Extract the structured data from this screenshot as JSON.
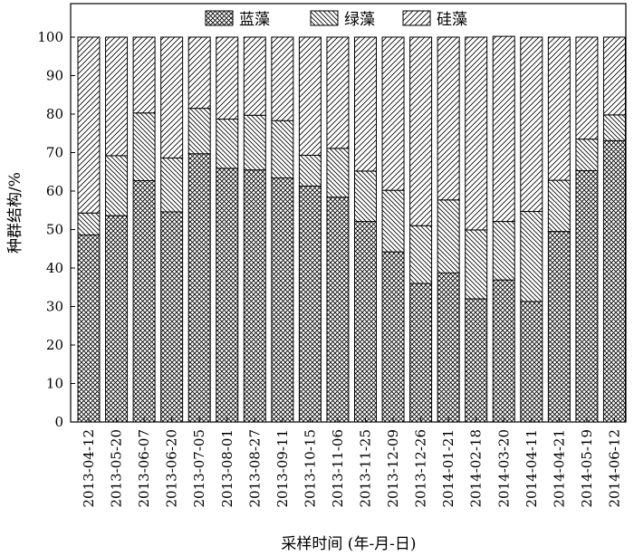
{
  "chart_data": {
    "type": "bar",
    "stacked": true,
    "xlabel": "采样时间 (年-月-日)",
    "ylabel": "种群结构/%",
    "ylim": [
      0,
      100
    ],
    "yticks": [
      0,
      10,
      20,
      30,
      40,
      50,
      60,
      70,
      80,
      90,
      100
    ],
    "legend_position": "top-center",
    "categories": [
      "2013-04-12",
      "2013-05-20",
      "2013-06-07",
      "2013-06-20",
      "2013-07-05",
      "2013-08-01",
      "2013-08-27",
      "2013-09-11",
      "2013-10-15",
      "2013-11-06",
      "2013-11-25",
      "2013-12-09",
      "2013-12-26",
      "2014-01-21",
      "2014-02-18",
      "2014-03-20",
      "2014-04-11",
      "2014-04-21",
      "2014-05-19",
      "2014-06-12"
    ],
    "series": [
      {
        "name": "蓝藻",
        "pattern": "crosshatch",
        "values": [
          48.6,
          53.6,
          62.7,
          54.6,
          69.7,
          65.9,
          65.5,
          63.4,
          61.3,
          58.4,
          52.1,
          44.2,
          36.0,
          38.7,
          32.0,
          36.9,
          31.3,
          49.5,
          65.3,
          73.1
        ]
      },
      {
        "name": "绿藻",
        "pattern": "backslash",
        "values": [
          5.7,
          15.6,
          17.6,
          14.0,
          11.8,
          12.8,
          14.2,
          14.9,
          8.0,
          12.7,
          13.1,
          16.0,
          15.0,
          19.0,
          17.9,
          15.2,
          23.4,
          13.3,
          8.2,
          6.7
        ]
      },
      {
        "name": "硅藻",
        "pattern": "slash",
        "values": [
          45.7,
          30.8,
          19.7,
          31.4,
          18.5,
          21.3,
          20.3,
          21.7,
          30.7,
          28.9,
          34.8,
          39.8,
          49.0,
          42.3,
          50.1,
          48.1,
          45.3,
          37.2,
          26.5,
          20.2
        ]
      }
    ],
    "colors": {
      "fill_background": "#ffffff",
      "stroke": "#000000"
    }
  }
}
